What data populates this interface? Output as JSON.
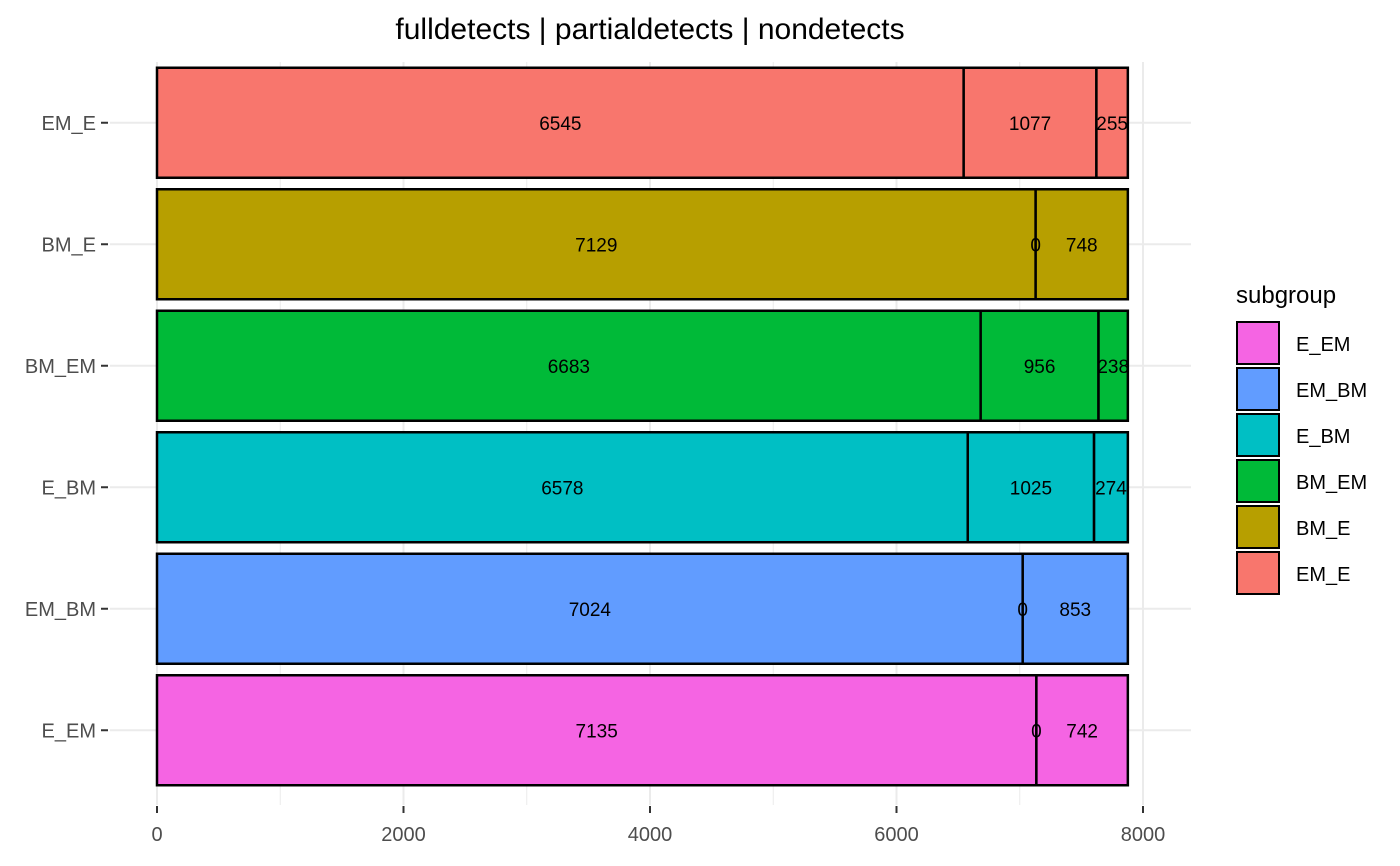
{
  "chart_data": {
    "type": "bar",
    "orientation": "horizontal",
    "stacked": true,
    "title": "fulldetects  |  partialdetects  |  nondetects",
    "xlabel": "",
    "ylabel": "",
    "xlim": [
      0,
      8000
    ],
    "x_ticks": [
      "0",
      "2000",
      "4000",
      "6000",
      "8000"
    ],
    "x_tick_values": [
      0,
      2000,
      4000,
      6000,
      8000
    ],
    "grid": true,
    "categories": [
      "EM_E",
      "BM_E",
      "BM_EM",
      "E_BM",
      "EM_BM",
      "E_EM"
    ],
    "segments": [
      "fulldetects",
      "partialdetects",
      "nondetects"
    ],
    "values": [
      [
        6545,
        1077,
        255
      ],
      [
        7129,
        0,
        748
      ],
      [
        6683,
        956,
        238
      ],
      [
        6578,
        1025,
        274
      ],
      [
        7024,
        0,
        853
      ],
      [
        7135,
        0,
        742
      ]
    ],
    "value_labels": [
      [
        "6545",
        "1077",
        "255"
      ],
      [
        "7129",
        "0",
        "748"
      ],
      [
        "6683",
        "956",
        "238"
      ],
      [
        "6578",
        "1025",
        "274"
      ],
      [
        "7024",
        "0",
        "853"
      ],
      [
        "7135",
        "0",
        "742"
      ]
    ],
    "colors": {
      "EM_E": "#F8766D",
      "BM_E": "#B79F00",
      "BM_EM": "#00BA38",
      "E_BM": "#00BFC4",
      "EM_BM": "#619CFF",
      "E_EM": "#F564E3"
    },
    "legend": {
      "title": "subgroup",
      "position": "right",
      "items": [
        "E_EM",
        "EM_BM",
        "E_BM",
        "BM_EM",
        "BM_E",
        "EM_E"
      ]
    }
  }
}
